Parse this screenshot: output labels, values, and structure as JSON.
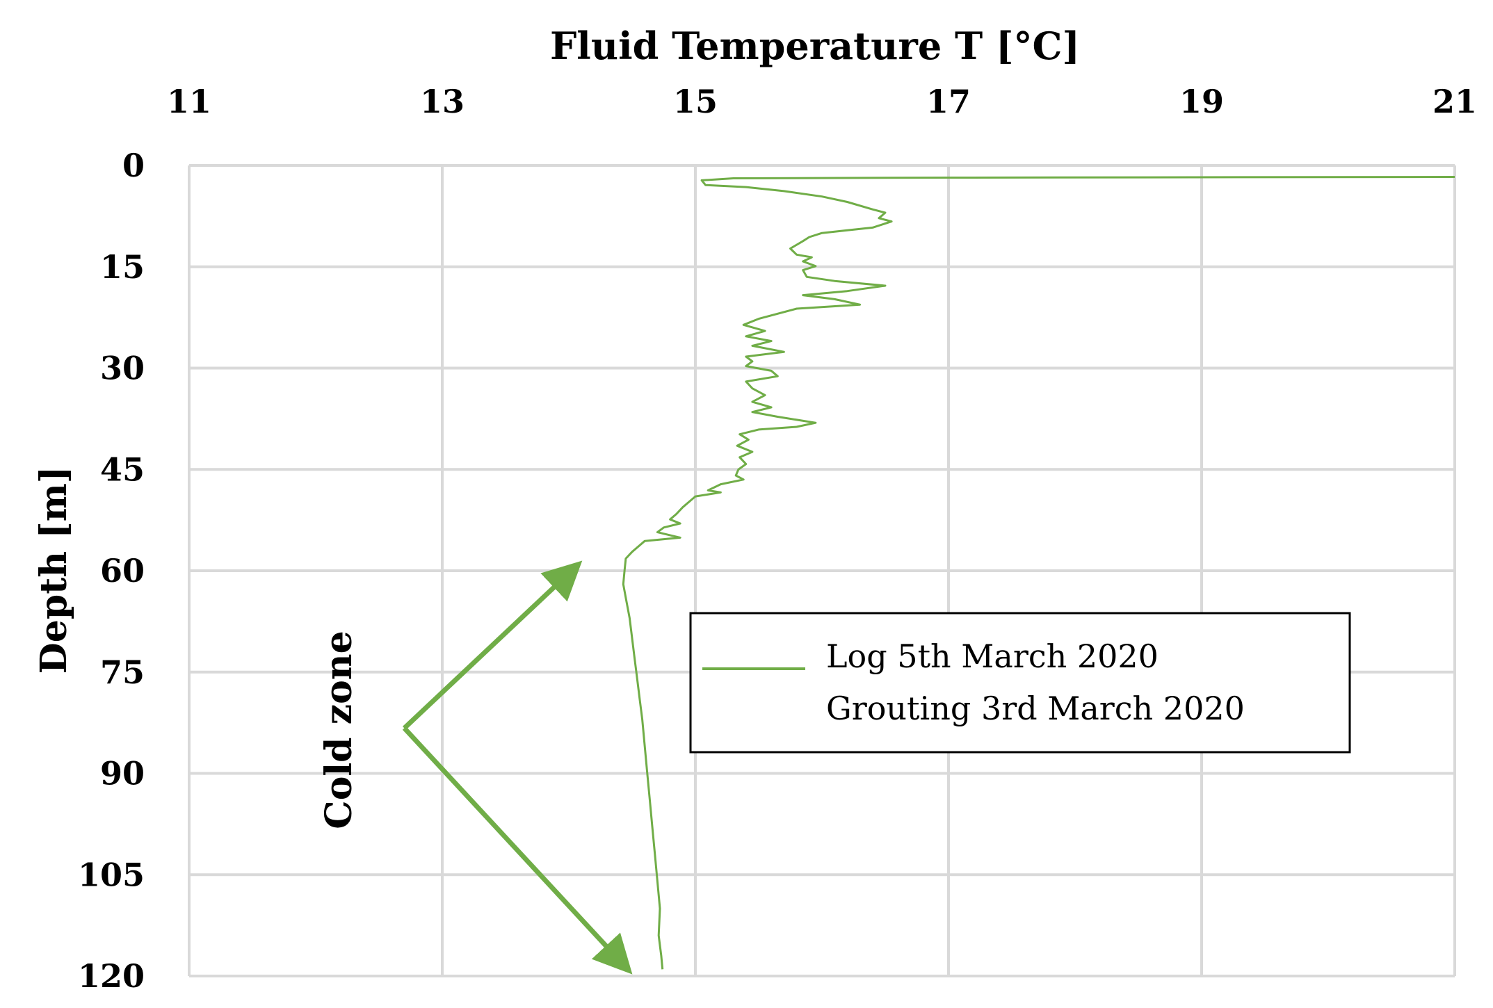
{
  "chart_data": {
    "type": "line",
    "xlabel": "Fluid Temperature T [°C]",
    "ylabel": "Depth [m]",
    "xlim": [
      11,
      21
    ],
    "ylim": [
      0,
      120
    ],
    "y_inverted": true,
    "x_axis_position": "top",
    "x_ticks": [
      11,
      13,
      15,
      17,
      19,
      21
    ],
    "y_ticks": [
      0,
      15,
      30,
      45,
      60,
      75,
      90,
      105,
      120
    ],
    "grid": true,
    "legend_placement": "center-right",
    "series": [
      {
        "name": "Log 5th March 2020 Grouting 3rd March 2020",
        "legend_lines": [
          "Log 5th March 2020",
          "Grouting 3rd March 2020"
        ],
        "color": "#70AD47",
        "points": [
          [
            21.0,
            1.7
          ],
          [
            17.0,
            1.8
          ],
          [
            15.3,
            1.9
          ],
          [
            15.05,
            2.2
          ],
          [
            15.08,
            2.9
          ],
          [
            15.4,
            3.2
          ],
          [
            15.7,
            3.8
          ],
          [
            16.0,
            4.6
          ],
          [
            16.2,
            5.4
          ],
          [
            16.4,
            6.5
          ],
          [
            16.5,
            7.0
          ],
          [
            16.45,
            7.8
          ],
          [
            16.55,
            8.3
          ],
          [
            16.4,
            9.2
          ],
          [
            16.2,
            9.6
          ],
          [
            16.0,
            10.0
          ],
          [
            15.9,
            10.6
          ],
          [
            15.85,
            11.2
          ],
          [
            15.75,
            12.3
          ],
          [
            15.8,
            13.2
          ],
          [
            15.92,
            13.6
          ],
          [
            15.85,
            14.2
          ],
          [
            15.95,
            14.9
          ],
          [
            15.85,
            15.5
          ],
          [
            15.88,
            16.5
          ],
          [
            16.1,
            17.1
          ],
          [
            16.5,
            17.8
          ],
          [
            16.2,
            18.6
          ],
          [
            15.85,
            19.2
          ],
          [
            16.1,
            19.8
          ],
          [
            16.3,
            20.6
          ],
          [
            15.8,
            21.2
          ],
          [
            15.5,
            22.7
          ],
          [
            15.38,
            23.6
          ],
          [
            15.55,
            24.5
          ],
          [
            15.4,
            25.3
          ],
          [
            15.6,
            26.0
          ],
          [
            15.45,
            26.7
          ],
          [
            15.7,
            27.6
          ],
          [
            15.4,
            28.3
          ],
          [
            15.45,
            29.0
          ],
          [
            15.4,
            29.7
          ],
          [
            15.6,
            30.4
          ],
          [
            15.65,
            31.2
          ],
          [
            15.4,
            32.0
          ],
          [
            15.45,
            33.0
          ],
          [
            15.55,
            34.0
          ],
          [
            15.45,
            35.0
          ],
          [
            15.6,
            35.8
          ],
          [
            15.45,
            36.5
          ],
          [
            15.65,
            37.2
          ],
          [
            15.95,
            38.1
          ],
          [
            15.8,
            38.7
          ],
          [
            15.5,
            39.1
          ],
          [
            15.35,
            39.8
          ],
          [
            15.42,
            40.6
          ],
          [
            15.33,
            41.5
          ],
          [
            15.45,
            42.4
          ],
          [
            15.35,
            43.2
          ],
          [
            15.4,
            44.2
          ],
          [
            15.34,
            45.0
          ],
          [
            15.32,
            45.9
          ],
          [
            15.38,
            46.5
          ],
          [
            15.2,
            47.2
          ],
          [
            15.1,
            48.1
          ],
          [
            15.2,
            48.4
          ],
          [
            15.0,
            49.0
          ],
          [
            14.95,
            49.8
          ],
          [
            14.9,
            50.6
          ],
          [
            14.85,
            51.6
          ],
          [
            14.8,
            52.4
          ],
          [
            14.88,
            53.0
          ],
          [
            14.75,
            53.6
          ],
          [
            14.7,
            54.3
          ],
          [
            14.88,
            55.1
          ],
          [
            14.6,
            55.6
          ],
          [
            14.55,
            56.4
          ],
          [
            14.5,
            57.2
          ],
          [
            14.45,
            58.2
          ],
          [
            14.44,
            60.0
          ],
          [
            14.43,
            62.0
          ],
          [
            14.45,
            64.0
          ],
          [
            14.48,
            67.0
          ],
          [
            14.5,
            70.0
          ],
          [
            14.52,
            73.0
          ],
          [
            14.54,
            76.0
          ],
          [
            14.56,
            79.0
          ],
          [
            14.58,
            82.0
          ],
          [
            14.6,
            86.0
          ],
          [
            14.62,
            90.0
          ],
          [
            14.64,
            94.0
          ],
          [
            14.66,
            98.0
          ],
          [
            14.68,
            102.0
          ],
          [
            14.7,
            106.0
          ],
          [
            14.72,
            110.0
          ],
          [
            14.71,
            114.0
          ],
          [
            14.73,
            117.0
          ],
          [
            14.74,
            119.0
          ]
        ]
      }
    ],
    "annotations": [
      {
        "text": "Cold zone",
        "orientation": "vertical",
        "arrow_color": "#70AD47",
        "arrow_origin": [
          12.7,
          83.3
        ],
        "arrow_targets": [
          [
            14.05,
            59.5
          ],
          [
            14.45,
            118.7
          ]
        ]
      }
    ]
  }
}
